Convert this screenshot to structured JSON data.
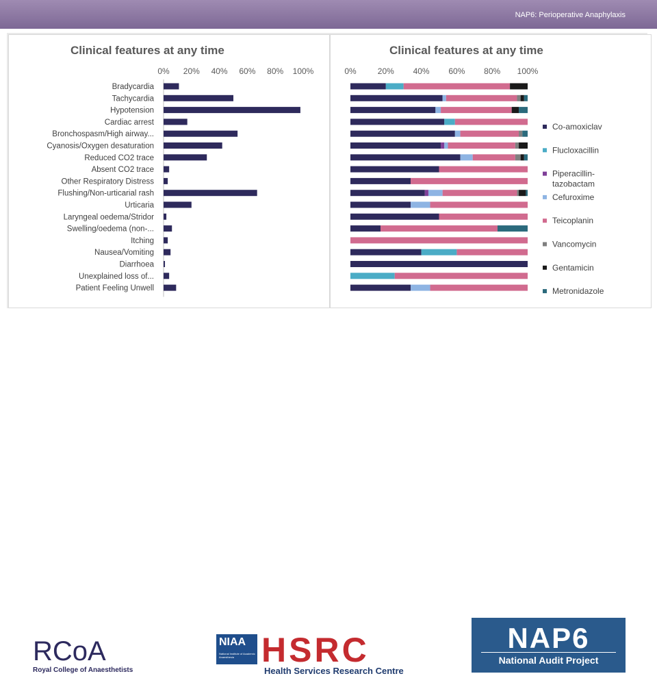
{
  "header": {
    "title": "NAP6: Perioperative Anaphylaxis"
  },
  "colors": {
    "header_bg": "#8a76a2",
    "bar_primary": "#2e2a5c",
    "series": [
      "#2e2a5c",
      "#4bacc6",
      "#7f3f98",
      "#8eb4e3",
      "#d16b8f",
      "#7f7f7f",
      "#1a1a1a",
      "#2b6a7c"
    ]
  },
  "chart_data": [
    {
      "type": "bar",
      "orientation": "horizontal",
      "title": "Clinical features at any time",
      "xlim": [
        0,
        100
      ],
      "xticks": [
        "0%",
        "20%",
        "40%",
        "60%",
        "80%",
        "100%"
      ],
      "categories": [
        "Bradycardia",
        "Tachycardia",
        "Hypotension",
        "Cardiac arrest",
        "Bronchospasm/High airway...",
        "Cyanosis/Oxygen desaturation",
        "Reduced CO2 trace",
        "Absent CO2 trace",
        "Other Respiratory Distress",
        "Flushing/Non-urticarial rash",
        "Urticaria",
        "Laryngeal oedema/Stridor",
        "Swelling/oedema (non-...",
        "Itching",
        "Nausea/Vomiting",
        "Diarrhoea",
        "Unexplained loss of...",
        "Patient Feeling Unwell"
      ],
      "values": [
        11,
        50,
        98,
        17,
        53,
        42,
        31,
        4,
        3,
        67,
        20,
        2,
        6,
        3,
        5,
        1,
        4,
        9
      ]
    },
    {
      "type": "bar",
      "orientation": "horizontal",
      "stacked": true,
      "title": "Clinical features at any time",
      "xlim": [
        0,
        100
      ],
      "xticks": [
        "0%",
        "20%",
        "40%",
        "60%",
        "80%",
        "100%"
      ],
      "legend_position": "right",
      "series": [
        {
          "name": "Co-amoxiclav",
          "values": [
            20,
            52,
            48,
            53,
            59,
            51,
            62,
            50,
            34,
            42,
            34,
            50,
            17,
            0,
            40,
            100,
            0,
            34
          ]
        },
        {
          "name": "Flucloxacillin",
          "values": [
            10,
            0,
            0,
            6,
            0,
            0,
            0,
            0,
            0,
            0,
            0,
            0,
            0,
            0,
            20,
            0,
            25,
            0
          ]
        },
        {
          "name": "Piperacillin-tazobactam",
          "values": [
            0,
            0,
            0,
            0,
            0,
            2,
            0,
            0,
            0,
            2,
            0,
            0,
            0,
            0,
            0,
            0,
            0,
            0
          ]
        },
        {
          "name": "Cefuroxime",
          "values": [
            0,
            2,
            3,
            0,
            3,
            2,
            7,
            0,
            0,
            8,
            11,
            0,
            0,
            0,
            0,
            0,
            0,
            11
          ]
        },
        {
          "name": "Teicoplanin",
          "values": [
            60,
            40,
            40,
            41,
            33,
            38,
            24,
            50,
            66,
            42,
            55,
            50,
            66,
            100,
            40,
            0,
            75,
            55
          ]
        },
        {
          "name": "Vancomycin",
          "values": [
            0,
            2,
            0,
            0,
            2,
            2,
            3,
            0,
            0,
            1,
            0,
            0,
            0,
            0,
            0,
            0,
            0,
            0
          ]
        },
        {
          "name": "Gentamicin",
          "values": [
            10,
            2,
            4,
            0,
            0,
            5,
            2,
            0,
            0,
            4,
            0,
            0,
            0,
            0,
            0,
            0,
            0,
            0
          ]
        },
        {
          "name": "Metronidazole",
          "values": [
            0,
            2,
            5,
            0,
            3,
            0,
            2,
            0,
            0,
            1,
            0,
            0,
            17,
            0,
            0,
            0,
            0,
            0
          ]
        }
      ]
    }
  ],
  "footer": {
    "rcoa_logo": "RCoA",
    "rcoa_name": "Royal College of Anaesthetists",
    "niaa": "NIAA",
    "niaa_sub": "National Institute of Academic Anaesthesia",
    "hsrc": "HSRC",
    "hsrc_name": "Health Services Research Centre",
    "nap6_title": "NAP6",
    "nap6_sub": "National Audit Project"
  }
}
